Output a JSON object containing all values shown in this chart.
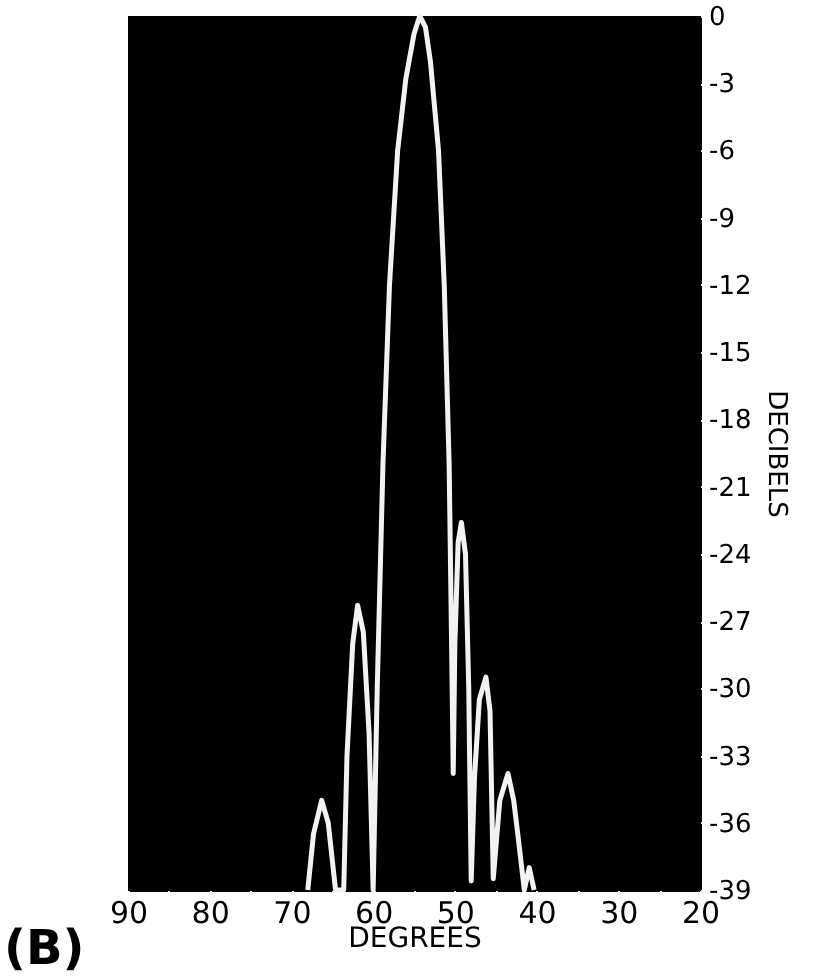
{
  "chart_data": {
    "type": "line",
    "xlabel": "DEGREES",
    "ylabel": "DECIBELS",
    "annotations": [
      "(B)"
    ],
    "x": [
      68,
      67.3,
      66.3,
      65.5,
      64.6,
      63.6,
      63.2,
      62.5,
      61.9,
      61.2,
      60.5,
      60,
      59.5,
      58.8,
      58,
      57,
      56,
      55,
      54.3,
      53.6,
      53,
      52,
      51.3,
      50.7,
      50.4,
      50.2,
      50,
      49.6,
      49.2,
      48.7,
      48.3,
      48,
      47.6,
      47,
      46.2,
      45.7,
      45.3,
      44.5,
      43.5,
      42.8,
      42.3,
      41.5,
      40.9,
      40.3
    ],
    "series": [
      {
        "color": "#f2f2f2",
        "values": [
          -39,
          -36.5,
          -35,
          -36,
          -39,
          -39,
          -33,
          -28,
          -26.3,
          -27.5,
          -32,
          -39,
          -30,
          -20,
          -12,
          -6,
          -2.8,
          -0.8,
          0,
          -0.5,
          -2,
          -6,
          -12,
          -20,
          -28,
          -33.8,
          -28,
          -23.5,
          -22.6,
          -24,
          -30,
          -38.6,
          -34,
          -30.5,
          -29.5,
          -31,
          -38.5,
          -35,
          -33.8,
          -35,
          -36.5,
          -39,
          -38,
          -39
        ]
      }
    ],
    "xlim": [
      90,
      20
    ],
    "xticks": [
      90,
      {
        "value": 85,
        "label": null
      },
      80,
      {
        "value": 75,
        "label": null
      },
      70,
      {
        "value": 65,
        "label": null
      },
      60,
      {
        "value": 55,
        "label": null
      },
      50,
      {
        "value": 45,
        "label": null
      },
      40,
      {
        "value": 35,
        "label": null
      },
      30,
      {
        "value": 25,
        "label": null
      },
      20
    ],
    "ylim": [
      -39,
      0
    ],
    "yticks": [
      0,
      -3,
      -6,
      -9,
      -12,
      -15,
      -18,
      -21,
      -24,
      -27,
      -30,
      -33,
      -36,
      -39
    ],
    "grid": false,
    "line_style": "solid"
  }
}
